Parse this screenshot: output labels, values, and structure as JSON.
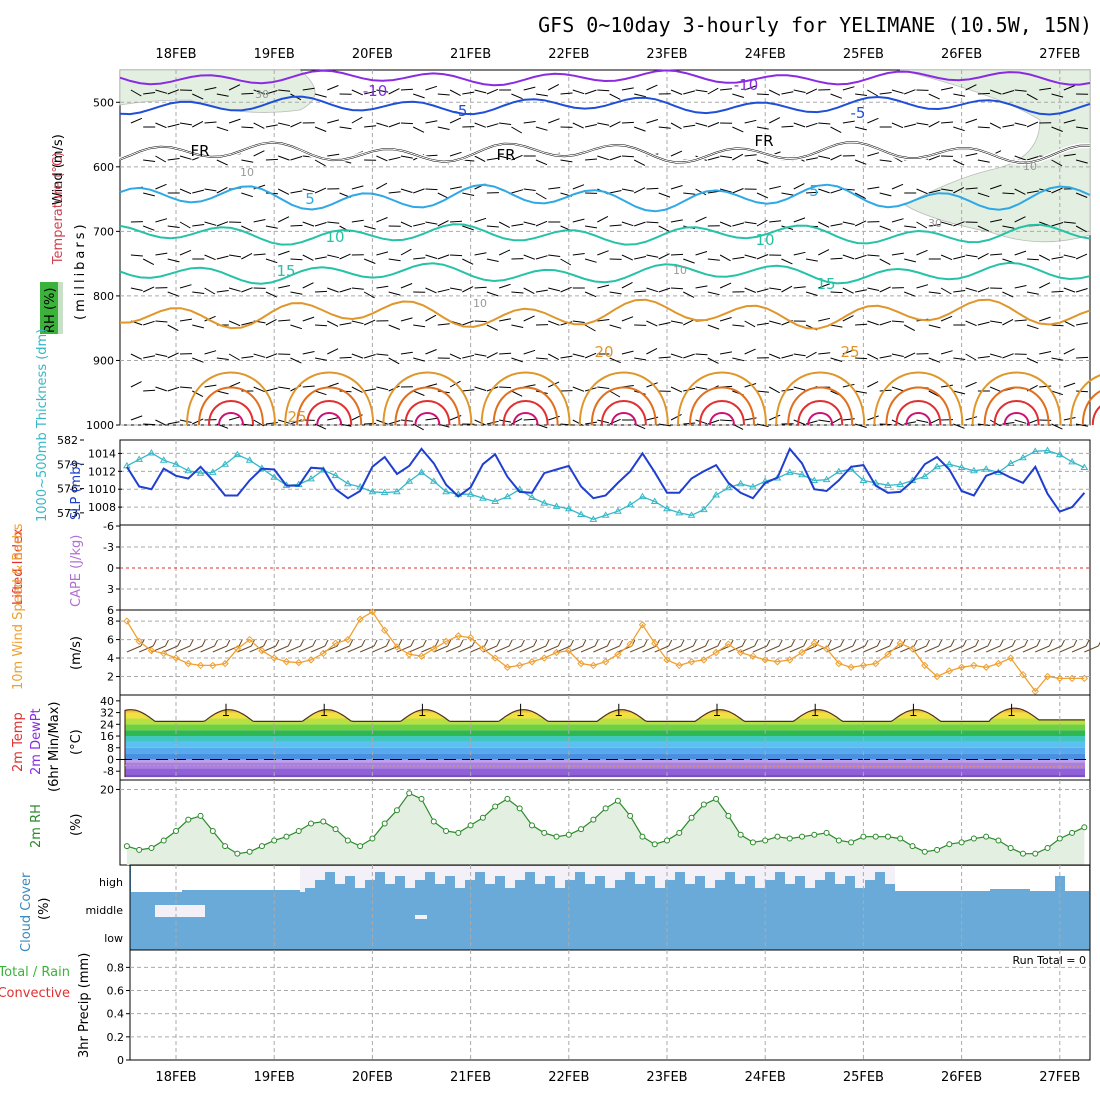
{
  "title": "GFS 0~10day 3-hourly for YELIMANE (10.5W, 15N)",
  "dates": [
    "18FEB",
    "19FEB",
    "20FEB",
    "21FEB",
    "22FEB",
    "23FEB",
    "24FEB",
    "25FEB",
    "26FEB",
    "27FEB"
  ],
  "colors": {
    "grid": "#aaaaaa",
    "temp_cold": "#8a2be2",
    "temp_cool": "#1f4fd8",
    "temp_mid": "#2ea8e6",
    "temp_green": "#26c2a8",
    "temp_warm": "#e0962a",
    "temp_hot": "#e03030",
    "rh_fill": "#e3efe0",
    "slp": "#1f3fd0",
    "thickness": "#36b8c8",
    "wind_speed": "#f0a030",
    "rh2m": "#2a8a2a",
    "cloud": "#6aaad8",
    "cloud_clear": "#f4f0f8"
  },
  "panels": {
    "upper_air": {
      "ylabel_units": "(millibars)",
      "label_wind": "Wind (m/s)",
      "label_temperature": "Temperature (°C)",
      "label_rh": "RH (%)",
      "yticks": [
        "500",
        "600",
        "700",
        "800",
        "900",
        "1000"
      ],
      "isotherm_labels": [
        {
          "text": "-10",
          "level": "-10"
        },
        {
          "text": "-10",
          "level": "-10"
        },
        {
          "text": "-5",
          "level": "-5"
        },
        {
          "text": "-5",
          "level": "-5"
        },
        {
          "text": "FR",
          "level": "0"
        },
        {
          "text": "FR",
          "level": "0"
        },
        {
          "text": "FR",
          "level": "0"
        },
        {
          "text": "5",
          "level": "5"
        },
        {
          "text": "5",
          "level": "5"
        },
        {
          "text": "10",
          "level": "10"
        },
        {
          "text": "10",
          "level": "10"
        },
        {
          "text": "15",
          "level": "15"
        },
        {
          "text": "15",
          "level": "15"
        },
        {
          "text": "20",
          "level": "20"
        },
        {
          "text": "25",
          "level": "25"
        },
        {
          "text": "25",
          "level": "25"
        },
        {
          "text": "30",
          "level": "rh"
        },
        {
          "text": "10",
          "level": "rh"
        },
        {
          "text": "10",
          "level": "rh"
        },
        {
          "text": "10",
          "level": "rh"
        },
        {
          "text": "30",
          "level": "rh"
        },
        {
          "text": "10",
          "level": "rh"
        }
      ]
    },
    "slp_thickness": {
      "label_thickness": "1000~500mb Thickness (dm)",
      "label_slp": "SLP (mb)",
      "left_ticks": [
        "582",
        "579",
        "576",
        "573"
      ],
      "right_ticks": [
        "1014",
        "1012",
        "1010",
        "1008"
      ]
    },
    "instability": {
      "label_li": "Lifted Index",
      "label_cape": "CAPE (J/kg)",
      "ticks": [
        "-6",
        "-3",
        "0",
        "3",
        "6"
      ]
    },
    "wind10m": {
      "label": "10m Wind Speed & Barbs",
      "units": "(m/s)",
      "ticks": [
        "8",
        "6",
        "4",
        "2"
      ]
    },
    "temp2m": {
      "label_temp": "2m Temp",
      "label_dewpt": "2m DewPt",
      "label_minmax": "(6hr Min/Max)",
      "units": "(°C)",
      "ticks": [
        "40",
        "32",
        "24",
        "16",
        "8",
        "0",
        "-8"
      ]
    },
    "rh2m": {
      "label": "2m RH",
      "units": "(%)",
      "ticks": [
        "20"
      ]
    },
    "cloud": {
      "label": "Cloud Cover",
      "units": "(%)",
      "levels": [
        "high",
        "middle",
        "low"
      ]
    },
    "precip": {
      "label_total": "Total / Rain",
      "label_conv": "Convective",
      "label_y": "3hr Precip (mm)",
      "run_total": "Run Total = 0",
      "ticks": [
        "0.8",
        "0.6",
        "0.4",
        "0.2",
        "0"
      ]
    }
  },
  "chart_data": [
    {
      "type": "line",
      "title": "SLP (mb)",
      "x": [
        "17FEB 12Z",
        "17FEB 15Z",
        "17FEB 18Z",
        "17FEB 21Z",
        "18FEB 00Z",
        "18FEB 03Z",
        "18FEB 06Z",
        "18FEB 09Z",
        "18FEB 12Z",
        "18FEB 15Z",
        "18FEB 18Z",
        "18FEB 21Z",
        "19FEB 00Z",
        "19FEB 03Z",
        "19FEB 06Z",
        "19FEB 09Z",
        "19FEB 12Z",
        "19FEB 15Z",
        "19FEB 18Z",
        "19FEB 21Z",
        "20FEB 00Z",
        "20FEB 03Z",
        "20FEB 06Z",
        "20FEB 09Z",
        "20FEB 12Z",
        "20FEB 15Z",
        "20FEB 18Z",
        "20FEB 21Z",
        "21FEB 00Z",
        "21FEB 03Z",
        "21FEB 06Z",
        "21FEB 09Z",
        "21FEB 12Z",
        "21FEB 15Z",
        "21FEB 18Z",
        "21FEB 21Z",
        "22FEB 00Z",
        "22FEB 03Z",
        "22FEB 06Z",
        "22FEB 09Z",
        "22FEB 12Z",
        "22FEB 15Z",
        "22FEB 18Z",
        "22FEB 21Z",
        "23FEB 00Z",
        "23FEB 03Z",
        "23FEB 06Z",
        "23FEB 09Z",
        "23FEB 12Z",
        "23FEB 15Z",
        "23FEB 18Z",
        "23FEB 21Z",
        "24FEB 00Z",
        "24FEB 03Z",
        "24FEB 06Z",
        "24FEB 09Z",
        "24FEB 12Z",
        "24FEB 15Z",
        "24FEB 18Z",
        "24FEB 21Z",
        "25FEB 00Z",
        "25FEB 03Z",
        "25FEB 06Z",
        "25FEB 09Z",
        "25FEB 12Z",
        "25FEB 15Z",
        "25FEB 18Z",
        "25FEB 21Z",
        "26FEB 00Z",
        "26FEB 03Z",
        "26FEB 06Z",
        "26FEB 09Z",
        "26FEB 12Z",
        "26FEB 15Z",
        "26FEB 18Z",
        "26FEB 21Z",
        "27FEB 00Z",
        "27FEB 03Z",
        "27FEB 06Z"
      ],
      "series": [
        {
          "name": "SLP (mb)",
          "values": [
            1012.5,
            1010.3,
            1010.0,
            1012.3,
            1011.5,
            1011.2,
            1012.5,
            1011.0,
            1009.3,
            1009.3,
            1011.0,
            1012.3,
            1012.2,
            1010.4,
            1010.4,
            1012.4,
            1012.3,
            1010.0,
            1009.0,
            1009.8,
            1012.5,
            1013.6,
            1011.7,
            1012.6,
            1014.5,
            1012.9,
            1010.5,
            1009.2,
            1010.2,
            1012.8,
            1013.9,
            1011.4,
            1009.7,
            1009.6,
            1011.8,
            1012.2,
            1012.6,
            1010.3,
            1009.0,
            1009.3,
            1010.7,
            1012.0,
            1014.0,
            1011.9,
            1009.6,
            1009.6,
            1011.2,
            1012.0,
            1012.7,
            1010.7,
            1009.6,
            1009.0,
            1010.7,
            1011.3,
            1014.5,
            1012.9,
            1010.0,
            1009.8,
            1011.0,
            1012.5,
            1012.7,
            1010.4,
            1009.6,
            1009.7,
            1010.9,
            1012.8,
            1013.6,
            1012.2,
            1009.8,
            1009.3,
            1011.5,
            1012.0,
            1011.3,
            1010.7,
            1012.5,
            1009.5,
            1007.5,
            1008.0,
            1009.6
          ]
        },
        {
          "name": "1000~500mb Thickness (dm)",
          "values": [
            578.8,
            579.6,
            580.4,
            579.5,
            579.0,
            578.2,
            577.9,
            578.0,
            579.0,
            580.2,
            579.5,
            578.5,
            577.4,
            576.4,
            576.5,
            577.2,
            578.3,
            577.6,
            576.6,
            576.2,
            575.6,
            575.5,
            575.6,
            576.9,
            578.0,
            576.9,
            575.6,
            575.3,
            575.3,
            574.8,
            574.4,
            575.0,
            575.9,
            574.9,
            574.2,
            573.8,
            573.5,
            572.8,
            572.2,
            572.7,
            573.2,
            574.0,
            575.0,
            574.4,
            573.5,
            573.0,
            572.7,
            573.4,
            575.2,
            576.1,
            576.6,
            576.2,
            576.9,
            577.3,
            578.0,
            577.7,
            577.0,
            577.1,
            578.1,
            578.4,
            577.0,
            576.7,
            576.4,
            576.5,
            577.0,
            577.5,
            578.7,
            579.0,
            578.6,
            578.2,
            578.4,
            578.0,
            579.1,
            579.8,
            580.6,
            580.7,
            580.2,
            579.3,
            578.6
          ]
        }
      ]
    },
    {
      "type": "line",
      "title": "10m Wind Speed & Barbs",
      "xlabel": "",
      "ylabel": "(m/s)",
      "ylim": [
        0,
        9
      ],
      "series": [
        {
          "name": "10m Wind Speed",
          "values": [
            8.0,
            5.8,
            4.8,
            4.5,
            4.0,
            3.4,
            3.2,
            3.2,
            3.4,
            5.0,
            6.0,
            4.8,
            4.0,
            3.6,
            3.5,
            3.8,
            4.5,
            5.6,
            6.0,
            8.2,
            9.0,
            7.0,
            5.2,
            4.4,
            4.2,
            5.0,
            5.8,
            6.4,
            6.2,
            5.0,
            4.0,
            3.0,
            3.2,
            3.6,
            4.0,
            4.6,
            4.8,
            3.4,
            3.2,
            3.6,
            4.4,
            5.5,
            7.6,
            5.6,
            3.8,
            3.2,
            3.6,
            3.8,
            4.6,
            5.5,
            4.6,
            4.2,
            3.8,
            3.6,
            3.8,
            4.6,
            5.6,
            5.0,
            3.4,
            3.0,
            3.2,
            3.4,
            4.4,
            5.6,
            5.0,
            3.2,
            2.0,
            2.6,
            3.0,
            3.2,
            3.0,
            3.4,
            4.0,
            2.2,
            0.4,
            2.0,
            1.8,
            1.8,
            1.8
          ]
        }
      ]
    },
    {
      "type": "line",
      "title": "2m RH",
      "xlabel": "",
      "ylabel": "(%)",
      "ylim": [
        0,
        22
      ],
      "series": [
        {
          "name": "2m RH",
          "values": [
            5.0,
            4.0,
            4.5,
            6.5,
            9.0,
            12.0,
            13.0,
            9.0,
            5.0,
            3.0,
            3.5,
            5.0,
            6.5,
            7.5,
            9.0,
            11.0,
            11.5,
            9.5,
            6.5,
            5.0,
            7.0,
            11.0,
            14.5,
            19.0,
            17.5,
            11.5,
            9.0,
            8.5,
            10.5,
            12.5,
            15.5,
            17.5,
            15.0,
            10.5,
            8.5,
            7.5,
            8.0,
            9.5,
            12.0,
            15.0,
            17.0,
            13.0,
            7.5,
            5.5,
            6.5,
            8.5,
            12.5,
            16.0,
            17.5,
            13.0,
            8.0,
            6.0,
            6.5,
            7.5,
            7.0,
            7.5,
            8.0,
            8.5,
            6.5,
            6.0,
            7.5,
            7.5,
            7.5,
            7.0,
            5.0,
            3.5,
            4.0,
            5.5,
            6.0,
            7.0,
            7.5,
            6.5,
            4.5,
            3.0,
            3.0,
            4.5,
            7.0,
            8.5,
            10.0
          ]
        }
      ]
    }
  ]
}
